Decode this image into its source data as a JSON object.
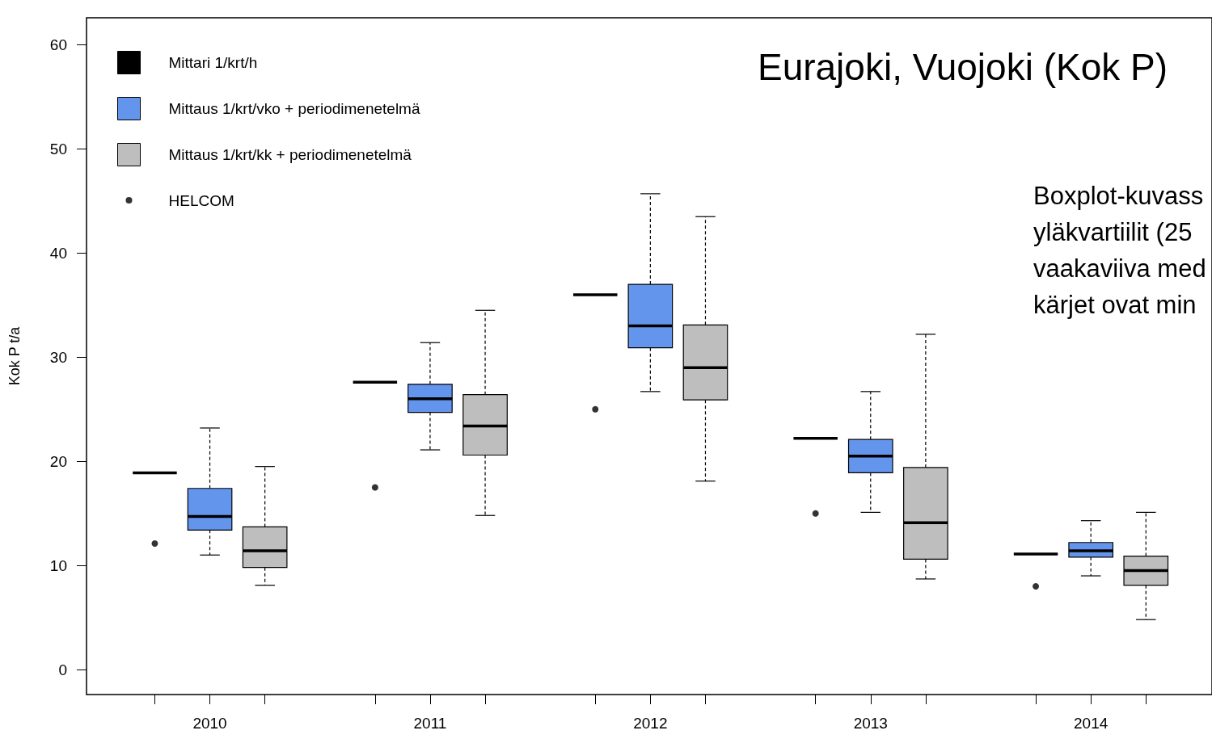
{
  "chart_data": {
    "type": "box",
    "title": "Eurajoki, Vuojoki (Kok P)",
    "ylabel": "Kok P t/a",
    "categories": [
      "2010",
      "2011",
      "2012",
      "2013",
      "2014"
    ],
    "ylim": [
      -2.4,
      62.6
    ],
    "yticks": [
      0,
      10,
      20,
      30,
      40,
      50,
      60
    ],
    "grid": false,
    "legend": "top left",
    "annotations": [
      "Boxplot-kuvass\nyläkvartiilit (25\nvaakaviiva med\nkärjet ovat min"
    ],
    "series": [
      {
        "name": "Mittari 1/krt/h",
        "color": "#000000",
        "boxes": [
          {
            "low": 18.9,
            "q1": 18.9,
            "median": 18.9,
            "q3": 18.9,
            "high": 18.9
          },
          {
            "low": 27.6,
            "q1": 27.6,
            "median": 27.6,
            "q3": 27.6,
            "high": 27.6
          },
          {
            "low": 36.0,
            "q1": 36.0,
            "median": 36.0,
            "q3": 36.0,
            "high": 36.0
          },
          {
            "low": 22.2,
            "q1": 22.2,
            "median": 22.2,
            "q3": 22.2,
            "high": 22.2
          },
          {
            "low": 11.1,
            "q1": 11.1,
            "median": 11.1,
            "q3": 11.1,
            "high": 11.1
          }
        ]
      },
      {
        "name": "Mittaus 1/krt/vko + periodimenetelmä",
        "color": "#6495ed",
        "boxes": [
          {
            "low": 11.0,
            "q1": 13.4,
            "median": 14.7,
            "q3": 17.4,
            "high": 23.2
          },
          {
            "low": 21.1,
            "q1": 24.7,
            "median": 26.0,
            "q3": 27.4,
            "high": 31.4
          },
          {
            "low": 26.7,
            "q1": 30.9,
            "median": 33.0,
            "q3": 37.0,
            "high": 45.7
          },
          {
            "low": 15.1,
            "q1": 18.9,
            "median": 20.5,
            "q3": 22.1,
            "high": 26.7
          },
          {
            "low": 9.0,
            "q1": 10.8,
            "median": 11.4,
            "q3": 12.2,
            "high": 14.3
          }
        ]
      },
      {
        "name": "Mittaus 1/krt/kk + periodimenetelmä",
        "color": "#bebebe",
        "boxes": [
          {
            "low": 8.1,
            "q1": 9.8,
            "median": 11.4,
            "q3": 13.7,
            "high": 19.5
          },
          {
            "low": 14.8,
            "q1": 20.6,
            "median": 23.4,
            "q3": 26.4,
            "high": 34.5
          },
          {
            "low": 18.1,
            "q1": 25.9,
            "median": 29.0,
            "q3": 33.1,
            "high": 43.5
          },
          {
            "low": 8.7,
            "q1": 10.6,
            "median": 14.1,
            "q3": 19.4,
            "high": 32.2
          },
          {
            "low": 4.8,
            "q1": 8.1,
            "median": 9.5,
            "q3": 10.9,
            "high": 15.1
          }
        ]
      },
      {
        "name": "HELCOM",
        "type": "scatter",
        "color": "#000000",
        "marker": "circle",
        "values": [
          12.1,
          17.5,
          25.0,
          15.0,
          8.0
        ]
      }
    ]
  }
}
